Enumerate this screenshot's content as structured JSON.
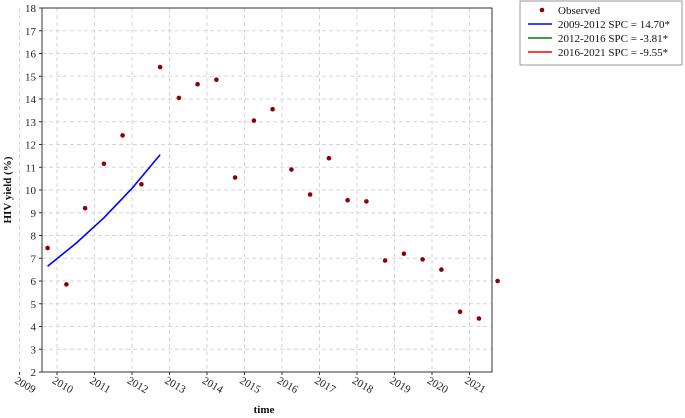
{
  "chart_data": {
    "type": "scatter",
    "xlabel": "time",
    "ylabel": "HIV yield (%)",
    "x_tick_labels": [
      "2009",
      "2010",
      "2011",
      "2012",
      "2013",
      "2014",
      "2015",
      "2016",
      "2017",
      "2018",
      "2019",
      "2020",
      "2021"
    ],
    "y_tick_labels": [
      "2",
      "3",
      "4",
      "5",
      "6",
      "7",
      "8",
      "9",
      "10",
      "11",
      "12",
      "13",
      "14",
      "15",
      "16",
      "17",
      "18"
    ],
    "ylim": [
      2,
      18
    ],
    "xlim": [
      2009.6,
      2021.6
    ],
    "grid": true,
    "legend_position": "top-right outside plot",
    "observed": {
      "name": "Observed",
      "color": "#8b0000",
      "x": [
        2009.75,
        2010.25,
        2010.75,
        2011.25,
        2011.75,
        2012.25,
        2012.75,
        2013.25,
        2013.75,
        2014.25,
        2014.75,
        2015.25,
        2015.75,
        2016.25,
        2016.75,
        2017.25,
        2017.75,
        2018.25,
        2018.75,
        2019.25,
        2019.75,
        2020.25,
        2020.75,
        2021.25,
        2021.75
      ],
      "y": [
        7.45,
        5.85,
        9.2,
        11.15,
        12.4,
        10.25,
        15.4,
        14.05,
        14.65,
        14.85,
        10.55,
        13.05,
        13.55,
        10.9,
        9.8,
        11.4,
        9.55,
        9.5,
        6.9,
        7.2,
        6.95,
        6.5,
        4.65,
        4.35,
        6.0
      ]
    },
    "trend_series": [
      {
        "name": "2009-2012 SPC  = 14.70*",
        "color": "#0000ff",
        "x": [
          2009.75,
          2010.5,
          2011.25,
          2012.0,
          2012.75
        ],
        "y": [
          6.65,
          7.65,
          8.78,
          10.07,
          11.55
        ]
      },
      {
        "name": "2012-2016 SPC  = -3.81*",
        "color": "#0a7a0a",
        "x": [],
        "y": []
      },
      {
        "name": "2016-2021 SPC  = -9.55*",
        "color": "#ff0000",
        "x": [],
        "y": []
      }
    ]
  }
}
